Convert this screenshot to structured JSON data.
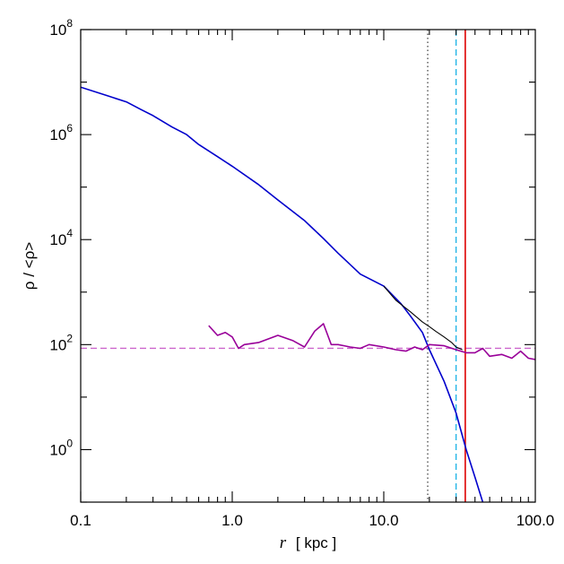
{
  "chart_data": {
    "type": "line",
    "xlabel_var": "r",
    "xlabel_unit": "[ kpc ]",
    "ylabel": "ρ / <ρ>",
    "xscale": "log",
    "yscale": "log",
    "xlim": [
      0.1,
      100
    ],
    "ylim": [
      0.1,
      100000000
    ],
    "x_ticks": [
      {
        "value": 0.1,
        "label": "0.1"
      },
      {
        "value": 1,
        "label": "1.0"
      },
      {
        "value": 10,
        "label": "10.0"
      },
      {
        "value": 100,
        "label": "100.0"
      }
    ],
    "y_ticks": [
      {
        "value": 1,
        "base": "10",
        "exp": "0"
      },
      {
        "value": 100,
        "base": "10",
        "exp": "2"
      },
      {
        "value": 10000,
        "base": "10",
        "exp": "4"
      },
      {
        "value": 1000000,
        "base": "10",
        "exp": "6"
      },
      {
        "value": 100000000,
        "base": "10",
        "exp": "8"
      }
    ],
    "series": [
      {
        "color": "#0000cc",
        "x": [
          0.1,
          0.15,
          0.2,
          0.25,
          0.3,
          0.4,
          0.5,
          0.6,
          0.8,
          1.0,
          1.5,
          2.0,
          3.0,
          4.0,
          5.0,
          7.0,
          10.0,
          13.0,
          15.0,
          18.0,
          20.0,
          25.0,
          30.0,
          35.0,
          40.0,
          45.0
        ],
        "y": [
          8000000,
          5500000,
          4200000,
          3000000,
          2300000,
          1400000,
          1000000,
          650000,
          380000,
          250000,
          110000,
          57000,
          23000,
          10500,
          5500,
          2200,
          1300,
          600,
          350,
          170,
          80,
          20,
          5,
          1,
          0.3,
          0.1
        ]
      },
      {
        "color": "#000000",
        "x": [
          10.0,
          12.0,
          15.0,
          18.0,
          20.0,
          22.0,
          25.0,
          28.0,
          30.0,
          33.0
        ],
        "y": [
          1300,
          700,
          420,
          270,
          220,
          180,
          140,
          110,
          90,
          80
        ]
      },
      {
        "color": "#990099",
        "x": [
          0.7,
          0.8,
          0.9,
          1.0,
          1.1,
          1.2,
          1.5,
          2.0,
          2.5,
          3.0,
          3.5,
          4.0,
          4.5,
          5.0,
          6.0,
          7.0,
          8.0,
          10.0,
          12.0,
          14.0,
          16.0,
          18.0,
          20.0,
          25.0,
          30.0,
          35.0,
          40.0,
          45.0,
          50.0,
          60.0,
          70.0,
          80.0,
          90.0,
          100.0
        ],
        "y": [
          230,
          150,
          170,
          140,
          85,
          100,
          110,
          150,
          120,
          90,
          180,
          250,
          100,
          100,
          90,
          85,
          100,
          90,
          80,
          75,
          90,
          80,
          100,
          95,
          80,
          70,
          70,
          85,
          60,
          65,
          55,
          75,
          55,
          52
        ]
      }
    ],
    "reference_lines": [
      {
        "orientation": "horizontal",
        "value": 85,
        "color": "#cc66cc",
        "style": "dashed"
      },
      {
        "orientation": "vertical",
        "value": 19.5,
        "color": "#555555",
        "style": "dotted"
      },
      {
        "orientation": "vertical",
        "value": 30,
        "color": "#22b5e6",
        "style": "dashed"
      },
      {
        "orientation": "vertical",
        "value": 34.5,
        "color": "#dd0000",
        "style": "solid"
      }
    ],
    "grid": false,
    "legend": "none"
  }
}
